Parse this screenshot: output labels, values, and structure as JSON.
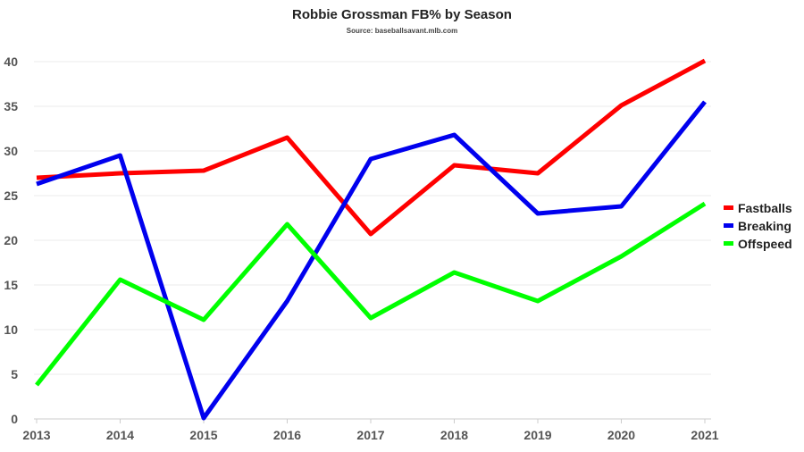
{
  "chart_data": {
    "type": "line",
    "title": "Robbie Grossman FB% by Season",
    "subtitle": "Source: baseballsavant.mlb.com",
    "xlabel": "",
    "ylabel": "",
    "categories": [
      "2013",
      "2014",
      "2015",
      "2016",
      "2017",
      "2018",
      "2019",
      "2020",
      "2021"
    ],
    "ylim": [
      0,
      40
    ],
    "yticks": [
      0,
      5,
      10,
      15,
      20,
      25,
      30,
      35,
      40
    ],
    "grid": true,
    "legend_position": "right",
    "series": [
      {
        "name": "Fastballs",
        "color": "#ff0000",
        "values": [
          27.0,
          27.5,
          27.8,
          31.5,
          20.7,
          28.4,
          27.5,
          35.1,
          40.1
        ]
      },
      {
        "name": "Breaking",
        "color": "#0000ee",
        "values": [
          26.3,
          29.5,
          0.1,
          13.2,
          29.1,
          31.8,
          23.0,
          23.8,
          35.5
        ]
      },
      {
        "name": "Offspeed",
        "color": "#00ff00",
        "values": [
          3.8,
          15.6,
          11.1,
          21.8,
          11.3,
          16.4,
          13.2,
          18.2,
          24.1
        ]
      }
    ]
  }
}
